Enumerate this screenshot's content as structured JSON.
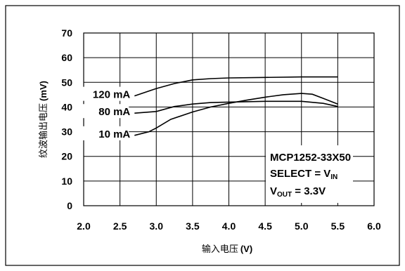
{
  "chart_data": {
    "type": "line",
    "x_axis": {
      "label_prefix": "输入电压",
      "label_unit": "(V)",
      "range": [
        2.0,
        6.0
      ],
      "ticks": [
        "2.0",
        "2.5",
        "3.0",
        "3.5",
        "4.0",
        "4.5",
        "5.0",
        "5.5",
        "6.0"
      ]
    },
    "y_axis": {
      "label_prefix": "纹波输出电压",
      "label_unit": "(mV)",
      "range": [
        0,
        70
      ],
      "ticks": [
        "0",
        "10",
        "20",
        "30",
        "40",
        "50",
        "60",
        "70"
      ]
    },
    "grid": true,
    "series": [
      {
        "name": "120 mA",
        "x": [
          2.7,
          3.0,
          3.25,
          3.5,
          3.75,
          4.0,
          4.5,
          5.0,
          5.5
        ],
        "y": [
          44.5,
          47.5,
          49.5,
          51.0,
          51.5,
          51.8,
          52.0,
          52.2,
          52.2
        ]
      },
      {
        "name": "80 mA",
        "x": [
          2.7,
          3.0,
          3.25,
          3.5,
          3.75,
          4.0,
          4.5,
          5.0,
          5.3,
          5.5
        ],
        "y": [
          37.5,
          38.2,
          40.2,
          41.2,
          41.8,
          42.0,
          42.3,
          42.3,
          41.5,
          40.2
        ]
      },
      {
        "name": "10 mA",
        "x": [
          2.7,
          2.9,
          3.0,
          3.2,
          3.5,
          3.75,
          4.0,
          4.25,
          4.5,
          4.75,
          5.0,
          5.15,
          5.3,
          5.5
        ],
        "y": [
          28.5,
          30.0,
          31.5,
          35.0,
          38.0,
          40.0,
          41.5,
          42.8,
          44.0,
          45.0,
          45.5,
          45.2,
          43.5,
          41.2
        ]
      }
    ],
    "annotation": {
      "line1": "MCP1252-33X50",
      "line2_main": "SELECT = V",
      "line2_sub": "IN",
      "line3_main": "V",
      "line3_sub": "OUT",
      "line3_rest": " = 3.3V"
    }
  }
}
